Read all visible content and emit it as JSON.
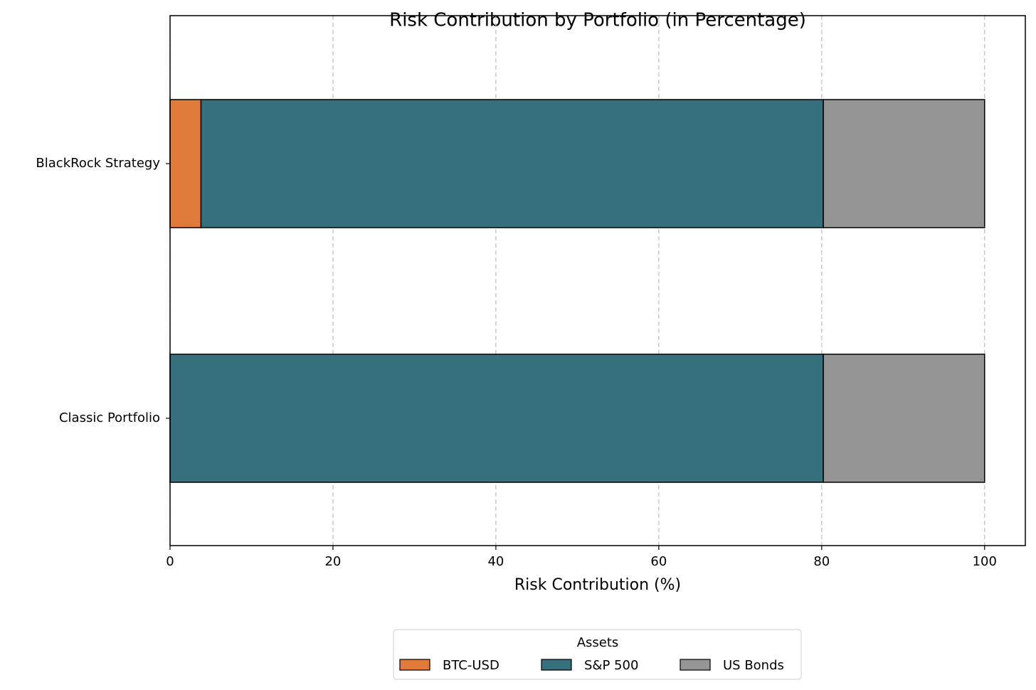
{
  "chart_data": {
    "type": "stacked-barh",
    "title": "Risk Contribution by Portfolio (in Percentage)",
    "x_label": "Risk Contribution (%)",
    "categories": [
      "Classic Portfolio",
      "BlackRock Strategy"
    ],
    "series": [
      {
        "name": "BTC-USD",
        "color": "#e07b39",
        "values": [
          0,
          3.8
        ]
      },
      {
        "name": "S&P 500",
        "color": "#35707c",
        "values": [
          80.2,
          76.4
        ]
      },
      {
        "name": "US Bonds",
        "color": "#959595",
        "values": [
          19.8,
          19.8
        ]
      }
    ],
    "xlim": [
      0,
      105
    ],
    "xticks": [
      0,
      20,
      40,
      60,
      80,
      100
    ],
    "grid": true,
    "legend_title": "Assets",
    "legend_position": "bottom"
  }
}
